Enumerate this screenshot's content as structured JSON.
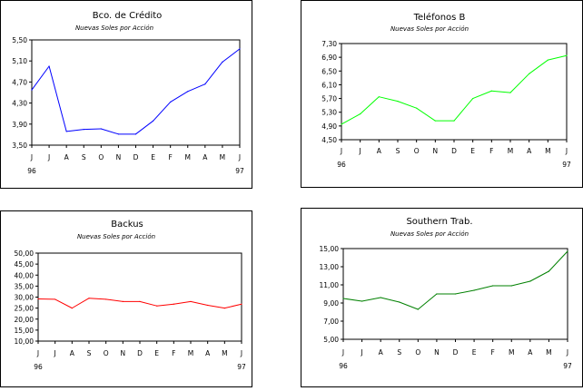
{
  "chart_data": [
    {
      "type": "line",
      "title": "Bco. de Crédito",
      "subtitle": "Nuevas Soles por Acción",
      "color": "#0000ff",
      "categories": [
        "J",
        "J",
        "A",
        "S",
        "O",
        "N",
        "D",
        "E",
        "F",
        "M",
        "A",
        "M",
        "J"
      ],
      "year_start": "96",
      "year_end": "97",
      "yticks": [
        "5,50",
        "5,10",
        "4,70",
        "4,30",
        "3,90",
        "3,50"
      ],
      "ylim": [
        3.5,
        5.5
      ],
      "values": [
        4.55,
        5.0,
        3.76,
        3.8,
        3.81,
        3.71,
        3.71,
        3.96,
        4.32,
        4.52,
        4.66,
        5.08,
        5.33
      ]
    },
    {
      "type": "line",
      "title": "Teléfonos B",
      "subtitle": "Nuevas Soles por Acción",
      "color": "#00ff00",
      "categories": [
        "J",
        "J",
        "A",
        "S",
        "O",
        "N",
        "D",
        "E",
        "F",
        "M",
        "A",
        "M",
        "J"
      ],
      "year_start": "96",
      "year_end": "97",
      "yticks": [
        "7,30",
        "6,90",
        "6,50",
        "6,10",
        "5,70",
        "5,30",
        "4,90",
        "4,50"
      ],
      "ylim": [
        4.5,
        7.3
      ],
      "values": [
        4.95,
        5.25,
        5.75,
        5.62,
        5.42,
        5.05,
        5.05,
        5.7,
        5.92,
        5.87,
        6.42,
        6.82,
        6.95
      ]
    },
    {
      "type": "line",
      "title": "Backus",
      "subtitle": "Nuevas Soles por Acción",
      "color": "#ff0000",
      "categories": [
        "J",
        "J",
        "A",
        "S",
        "O",
        "N",
        "D",
        "E",
        "F",
        "M",
        "A",
        "M",
        "J"
      ],
      "year_start": "96",
      "year_end": "97",
      "yticks": [
        "50,00",
        "45,00",
        "40,00",
        "35,00",
        "30,00",
        "25,00",
        "20,00",
        "15,00",
        "10,00"
      ],
      "ylim": [
        10,
        50
      ],
      "values": [
        29.2,
        29.0,
        25.0,
        29.5,
        29.0,
        28.0,
        28.0,
        26.0,
        26.8,
        28.0,
        26.3,
        25.0,
        26.8
      ]
    },
    {
      "type": "line",
      "title": "Southern Trab.",
      "subtitle": "Nuevas Soles por Acción",
      "color": "#008000",
      "categories": [
        "J",
        "J",
        "A",
        "S",
        "O",
        "N",
        "D",
        "E",
        "F",
        "M",
        "A",
        "M",
        "J"
      ],
      "year_start": "96",
      "year_end": "97",
      "yticks": [
        "15,00",
        "13,00",
        "11,00",
        "9,00",
        "7,00",
        "5,00"
      ],
      "ylim": [
        5,
        15
      ],
      "values": [
        9.5,
        9.2,
        9.6,
        9.1,
        8.3,
        10.0,
        10.0,
        10.4,
        10.9,
        10.9,
        11.4,
        12.5,
        14.7
      ]
    }
  ]
}
